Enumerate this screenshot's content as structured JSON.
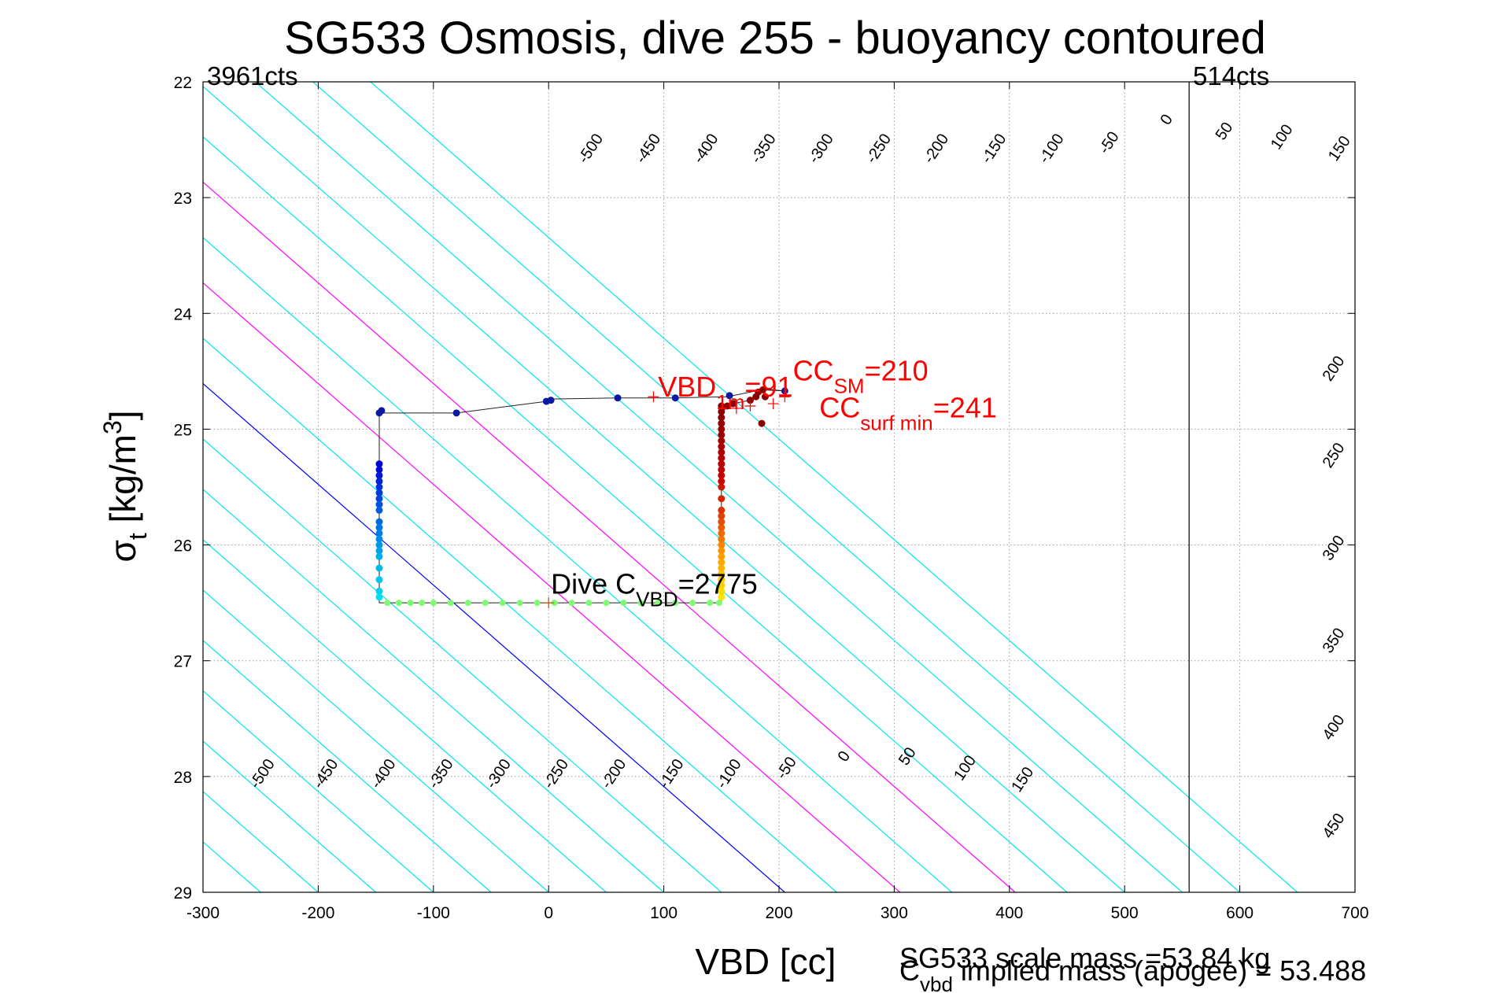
{
  "chart_data": {
    "type": "scatter",
    "title": "SG533 Osmosis, dive 255 - buoyancy contoured",
    "xlabel": "VBD [cc]",
    "ylabel": {
      "main": "σ",
      "sub": "t",
      "rest": " [kg/m",
      "sup": "3",
      "end": "]"
    },
    "xlim": [
      -300,
      700
    ],
    "ylim": [
      22,
      29
    ],
    "y_reversed": true,
    "grid": true,
    "xticks": [
      -300,
      -200,
      -100,
      0,
      100,
      200,
      300,
      400,
      500,
      600,
      700
    ],
    "yticks": [
      22,
      23,
      24,
      25,
      26,
      27,
      28,
      29
    ],
    "cts_left": "3961cts",
    "cts_right": "514cts",
    "cts_line_x": 556,
    "contour_slope": -0.0087,
    "contours": [
      {
        "vbd_at_29": -300,
        "color": "#00e5ee"
      },
      {
        "vbd_at_29": -250,
        "color": "#00e5ee"
      },
      {
        "vbd_at_29": -200,
        "color": "#00e5ee"
      },
      {
        "vbd_at_29": -150,
        "color": "#00e5ee"
      },
      {
        "vbd_at_29": -100,
        "color": "#00e5ee"
      },
      {
        "vbd_at_29": -50,
        "color": "#00e5ee"
      },
      {
        "vbd_at_29": 0,
        "color": "#00e5ee"
      },
      {
        "vbd_at_29": 50,
        "color": "#00e5ee"
      },
      {
        "vbd_at_29": 100,
        "color": "#00e5ee"
      },
      {
        "vbd_at_29": 150,
        "color": "#00e5ee"
      },
      {
        "vbd_at_29": 205,
        "color": "#0000ff"
      },
      {
        "vbd_at_29": 250,
        "color": "#00e5ee"
      },
      {
        "vbd_at_29": 305,
        "color": "#ff00ff"
      },
      {
        "vbd_at_29": 350,
        "color": "#00e5ee"
      },
      {
        "vbd_at_29": 405,
        "color": "#ff00ff"
      },
      {
        "vbd_at_29": 450,
        "color": "#00e5ee"
      },
      {
        "vbd_at_29": 500,
        "color": "#00e5ee"
      },
      {
        "vbd_at_29": 550,
        "color": "#00e5ee"
      },
      {
        "vbd_at_29": 600,
        "color": "#00e5ee"
      },
      {
        "vbd_at_29": 650,
        "color": "#00e5ee"
      }
    ],
    "contour_labels_top": [
      {
        "text": "-500",
        "x": 40,
        "y": 22.6
      },
      {
        "text": "-450",
        "x": 90,
        "y": 22.6
      },
      {
        "text": "-400",
        "x": 140,
        "y": 22.6
      },
      {
        "text": "-350",
        "x": 190,
        "y": 22.6
      },
      {
        "text": "-300",
        "x": 240,
        "y": 22.6
      },
      {
        "text": "-250",
        "x": 290,
        "y": 22.6
      },
      {
        "text": "-200",
        "x": 340,
        "y": 22.6
      },
      {
        "text": "-150",
        "x": 390,
        "y": 22.6
      },
      {
        "text": "-100",
        "x": 440,
        "y": 22.6
      },
      {
        "text": "-50",
        "x": 490,
        "y": 22.55
      },
      {
        "text": "0",
        "x": 540,
        "y": 22.35
      },
      {
        "text": "50",
        "x": 590,
        "y": 22.45
      },
      {
        "text": "100",
        "x": 640,
        "y": 22.5
      },
      {
        "text": "150",
        "x": 690,
        "y": 22.6
      }
    ],
    "contour_labels_right": [
      {
        "text": "200",
        "x": 685,
        "y": 24.5
      },
      {
        "text": "250",
        "x": 685,
        "y": 25.25
      },
      {
        "text": "300",
        "x": 685,
        "y": 26.05
      },
      {
        "text": "350",
        "x": 685,
        "y": 26.85
      },
      {
        "text": "400",
        "x": 685,
        "y": 27.6
      },
      {
        "text": "450",
        "x": 685,
        "y": 28.45
      }
    ],
    "contour_labels_bottom": [
      {
        "text": "-500",
        "x": -245,
        "y": 28.0
      },
      {
        "text": "-450",
        "x": -190,
        "y": 28.0
      },
      {
        "text": "-400",
        "x": -140,
        "y": 28.0
      },
      {
        "text": "-350",
        "x": -90,
        "y": 28.0
      },
      {
        "text": "-300",
        "x": -40,
        "y": 28.0
      },
      {
        "text": "-250",
        "x": 10,
        "y": 28.0
      },
      {
        "text": "-200",
        "x": 60,
        "y": 28.0
      },
      {
        "text": "-150",
        "x": 110,
        "y": 28.0
      },
      {
        "text": "-100",
        "x": 160,
        "y": 28.0
      },
      {
        "text": "-50",
        "x": 210,
        "y": 27.95
      },
      {
        "text": "0",
        "x": 260,
        "y": 27.85
      },
      {
        "text": "50",
        "x": 315,
        "y": 27.85
      },
      {
        "text": "100",
        "x": 365,
        "y": 27.95
      },
      {
        "text": "150",
        "x": 415,
        "y": 28.05
      }
    ],
    "dive_path": [
      [
        -147,
        24.85
      ],
      [
        -147,
        25.3
      ],
      [
        -147,
        25.9
      ],
      [
        -147,
        26.5
      ],
      [
        0,
        26.5
      ],
      [
        150,
        26.5
      ],
      [
        150,
        26.2
      ],
      [
        150,
        25.4
      ],
      [
        150,
        24.85
      ],
      [
        160,
        24.78
      ],
      [
        175,
        24.75
      ],
      [
        185,
        24.65
      ],
      [
        205,
        24.67
      ],
      [
        185,
        24.66
      ],
      [
        155,
        24.72
      ],
      [
        110,
        24.73
      ],
      [
        60,
        24.73
      ],
      [
        2,
        24.74
      ],
      [
        -2,
        24.76
      ],
      [
        -80,
        24.86
      ],
      [
        -147,
        24.86
      ]
    ],
    "points_blue": [
      [
        -147,
        24.86
      ],
      [
        -145,
        24.84
      ],
      [
        -80,
        24.86
      ],
      [
        -2,
        24.76
      ],
      [
        2,
        24.75
      ],
      [
        60,
        24.73
      ],
      [
        110,
        24.73
      ],
      [
        157,
        24.71
      ],
      [
        205,
        24.67
      ]
    ],
    "points_descent_x": -147,
    "points_descent_y": [
      25.3,
      25.35,
      25.4,
      25.45,
      25.5,
      25.55,
      25.6,
      25.65,
      25.7,
      25.8,
      25.85,
      25.9,
      25.95,
      26.0,
      26.05,
      26.1,
      26.2,
      26.3,
      26.4,
      26.45
    ],
    "points_apogee_y": 26.5,
    "points_apogee_x": [
      -140,
      -130,
      -120,
      -110,
      -100,
      -85,
      -70,
      -55,
      -40,
      -25,
      -10,
      5,
      20,
      35,
      50,
      65,
      80,
      95,
      110,
      125,
      140,
      148
    ],
    "points_ascent_x": 150,
    "points_ascent_y": [
      26.45,
      26.4,
      26.35,
      26.3,
      26.25,
      26.2,
      26.15,
      26.1,
      26.05,
      26.0,
      25.95,
      25.9,
      25.85,
      25.8,
      25.75,
      25.7,
      25.6,
      25.5,
      25.45,
      25.4,
      25.35,
      25.3,
      25.25,
      25.2,
      25.15,
      25.1,
      25.05,
      25.0,
      24.95,
      24.9,
      24.85,
      24.8
    ],
    "points_surface": [
      [
        155,
        24.8
      ],
      [
        160,
        24.78
      ],
      [
        175,
        24.75
      ],
      [
        180,
        24.72
      ],
      [
        182,
        24.68
      ],
      [
        186,
        24.66
      ],
      [
        188,
        24.72
      ],
      [
        185,
        24.95
      ]
    ],
    "markers_plus": [
      [
        91,
        24.72
      ],
      [
        175,
        24.8
      ],
      [
        163,
        24.82
      ],
      [
        195,
        24.78
      ],
      [
        205,
        24.72
      ],
      [
        0,
        26.5
      ]
    ],
    "annotations": [
      {
        "main": "VBD",
        "sub": "1m",
        "rest": "=91",
        "x": 95,
        "y": 24.72,
        "color": "#ff0000"
      },
      {
        "main": "CC",
        "sub": "SM",
        "rest": "=210",
        "x": 212,
        "y": 24.58,
        "color": "#ff0000"
      },
      {
        "main": "CC",
        "sub": "surf min",
        "rest": "=241",
        "x": 235,
        "y": 24.9,
        "color": "#ff0000"
      },
      {
        "main": "Dive C",
        "sub": "VBD",
        "rest": "=2775",
        "x": 2,
        "y": 26.42,
        "color": "#000000"
      }
    ],
    "footer_mass": "SG533 scale mass =53.84 kg",
    "footer_implied": {
      "main": "C",
      "sub": "vbd",
      "rest": " implied mass (apogee) = 53.488"
    }
  }
}
